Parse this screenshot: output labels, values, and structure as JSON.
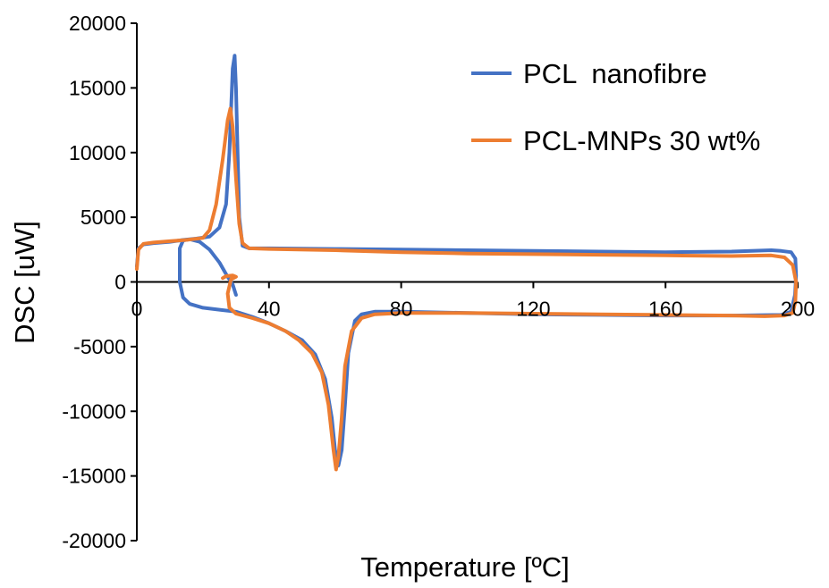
{
  "chart_data": {
    "type": "line",
    "title": "",
    "xlabel": "Temperature [ºC]",
    "ylabel": "DSC [uW]",
    "xlim": [
      0,
      200
    ],
    "ylim": [
      -20000,
      20000
    ],
    "xticks": [
      0,
      40,
      80,
      120,
      160,
      200
    ],
    "yticks": [
      20000,
      15000,
      10000,
      5000,
      0,
      -5000,
      -10000,
      -15000,
      -20000
    ],
    "grid": false,
    "legend_position": "top-right",
    "series": [
      {
        "name": "PCL  nanofibre",
        "color": "#4472C4",
        "points": [
          [
            30,
            -1000
          ],
          [
            29,
            -200
          ],
          [
            27,
            600
          ],
          [
            25,
            1500
          ],
          [
            22,
            2500
          ],
          [
            19,
            3100
          ],
          [
            16,
            3300
          ],
          [
            14,
            3200
          ],
          [
            13,
            2600
          ],
          [
            13,
            0
          ],
          [
            14,
            -1200
          ],
          [
            16,
            -1700
          ],
          [
            20,
            -2000
          ],
          [
            25,
            -2150
          ],
          [
            30,
            -2300
          ],
          [
            35,
            -2700
          ],
          [
            40,
            -3200
          ],
          [
            45,
            -3800
          ],
          [
            50,
            -4500
          ],
          [
            54,
            -5600
          ],
          [
            57,
            -7500
          ],
          [
            59,
            -10500
          ],
          [
            60,
            -13000
          ],
          [
            61,
            -14200
          ],
          [
            62,
            -13000
          ],
          [
            63,
            -9500
          ],
          [
            64,
            -5500
          ],
          [
            66,
            -3000
          ],
          [
            68,
            -2500
          ],
          [
            72,
            -2300
          ],
          [
            80,
            -2300
          ],
          [
            100,
            -2400
          ],
          [
            120,
            -2500
          ],
          [
            140,
            -2550
          ],
          [
            160,
            -2600
          ],
          [
            180,
            -2600
          ],
          [
            195,
            -2550
          ],
          [
            198,
            -2300
          ],
          [
            199.2,
            -1000
          ],
          [
            199.5,
            500
          ],
          [
            199.3,
            1800
          ],
          [
            198,
            2300
          ],
          [
            195,
            2400
          ],
          [
            192,
            2450
          ],
          [
            180,
            2350
          ],
          [
            160,
            2300
          ],
          [
            140,
            2350
          ],
          [
            120,
            2400
          ],
          [
            100,
            2450
          ],
          [
            80,
            2500
          ],
          [
            60,
            2550
          ],
          [
            40,
            2600
          ],
          [
            34,
            2600
          ],
          [
            32,
            2800
          ],
          [
            31,
            5000
          ],
          [
            30.5,
            10000
          ],
          [
            30,
            15000
          ],
          [
            29.6,
            17500
          ],
          [
            29,
            16500
          ],
          [
            28,
            10000
          ],
          [
            27,
            6000
          ],
          [
            25,
            4200
          ],
          [
            22,
            3500
          ],
          [
            18,
            3350
          ],
          [
            14,
            3250
          ],
          [
            10,
            3100
          ],
          [
            5,
            3000
          ],
          [
            2,
            2900
          ],
          [
            0.5,
            2600
          ],
          [
            0,
            1200
          ]
        ]
      },
      {
        "name": "PCL-MNPs 30 wt%",
        "color": "#ED7D31",
        "points": [
          [
            0,
            1000
          ],
          [
            0.5,
            2500
          ],
          [
            2,
            2950
          ],
          [
            5,
            3050
          ],
          [
            10,
            3150
          ],
          [
            15,
            3250
          ],
          [
            20,
            3400
          ],
          [
            22,
            4000
          ],
          [
            24,
            6000
          ],
          [
            26,
            9500
          ],
          [
            27.5,
            12500
          ],
          [
            28.3,
            13400
          ],
          [
            29,
            12000
          ],
          [
            30,
            8000
          ],
          [
            31,
            4500
          ],
          [
            32,
            3000
          ],
          [
            34,
            2600
          ],
          [
            40,
            2550
          ],
          [
            60,
            2450
          ],
          [
            80,
            2300
          ],
          [
            100,
            2200
          ],
          [
            120,
            2150
          ],
          [
            140,
            2100
          ],
          [
            160,
            2050
          ],
          [
            180,
            2000
          ],
          [
            192,
            2050
          ],
          [
            196,
            1900
          ],
          [
            198.5,
            1300
          ],
          [
            199.5,
            0
          ],
          [
            199.3,
            -1500
          ],
          [
            198.5,
            -2400
          ],
          [
            196,
            -2600
          ],
          [
            190,
            -2650
          ],
          [
            180,
            -2600
          ],
          [
            160,
            -2550
          ],
          [
            140,
            -2500
          ],
          [
            120,
            -2450
          ],
          [
            100,
            -2400
          ],
          [
            80,
            -2400
          ],
          [
            72,
            -2500
          ],
          [
            68,
            -2800
          ],
          [
            65,
            -3800
          ],
          [
            63,
            -6500
          ],
          [
            62,
            -10500
          ],
          [
            61,
            -13500
          ],
          [
            60.3,
            -14500
          ],
          [
            59.5,
            -13000
          ],
          [
            58,
            -9500
          ],
          [
            56,
            -7000
          ],
          [
            53,
            -5500
          ],
          [
            49,
            -4500
          ],
          [
            45,
            -3800
          ],
          [
            40,
            -3200
          ],
          [
            35,
            -2800
          ],
          [
            30,
            -2450
          ],
          [
            28,
            -2000
          ],
          [
            27.5,
            -900
          ],
          [
            28.5,
            200
          ],
          [
            30,
            400
          ],
          [
            29,
            500
          ],
          [
            27,
            450
          ],
          [
            26,
            300
          ]
        ]
      }
    ]
  }
}
